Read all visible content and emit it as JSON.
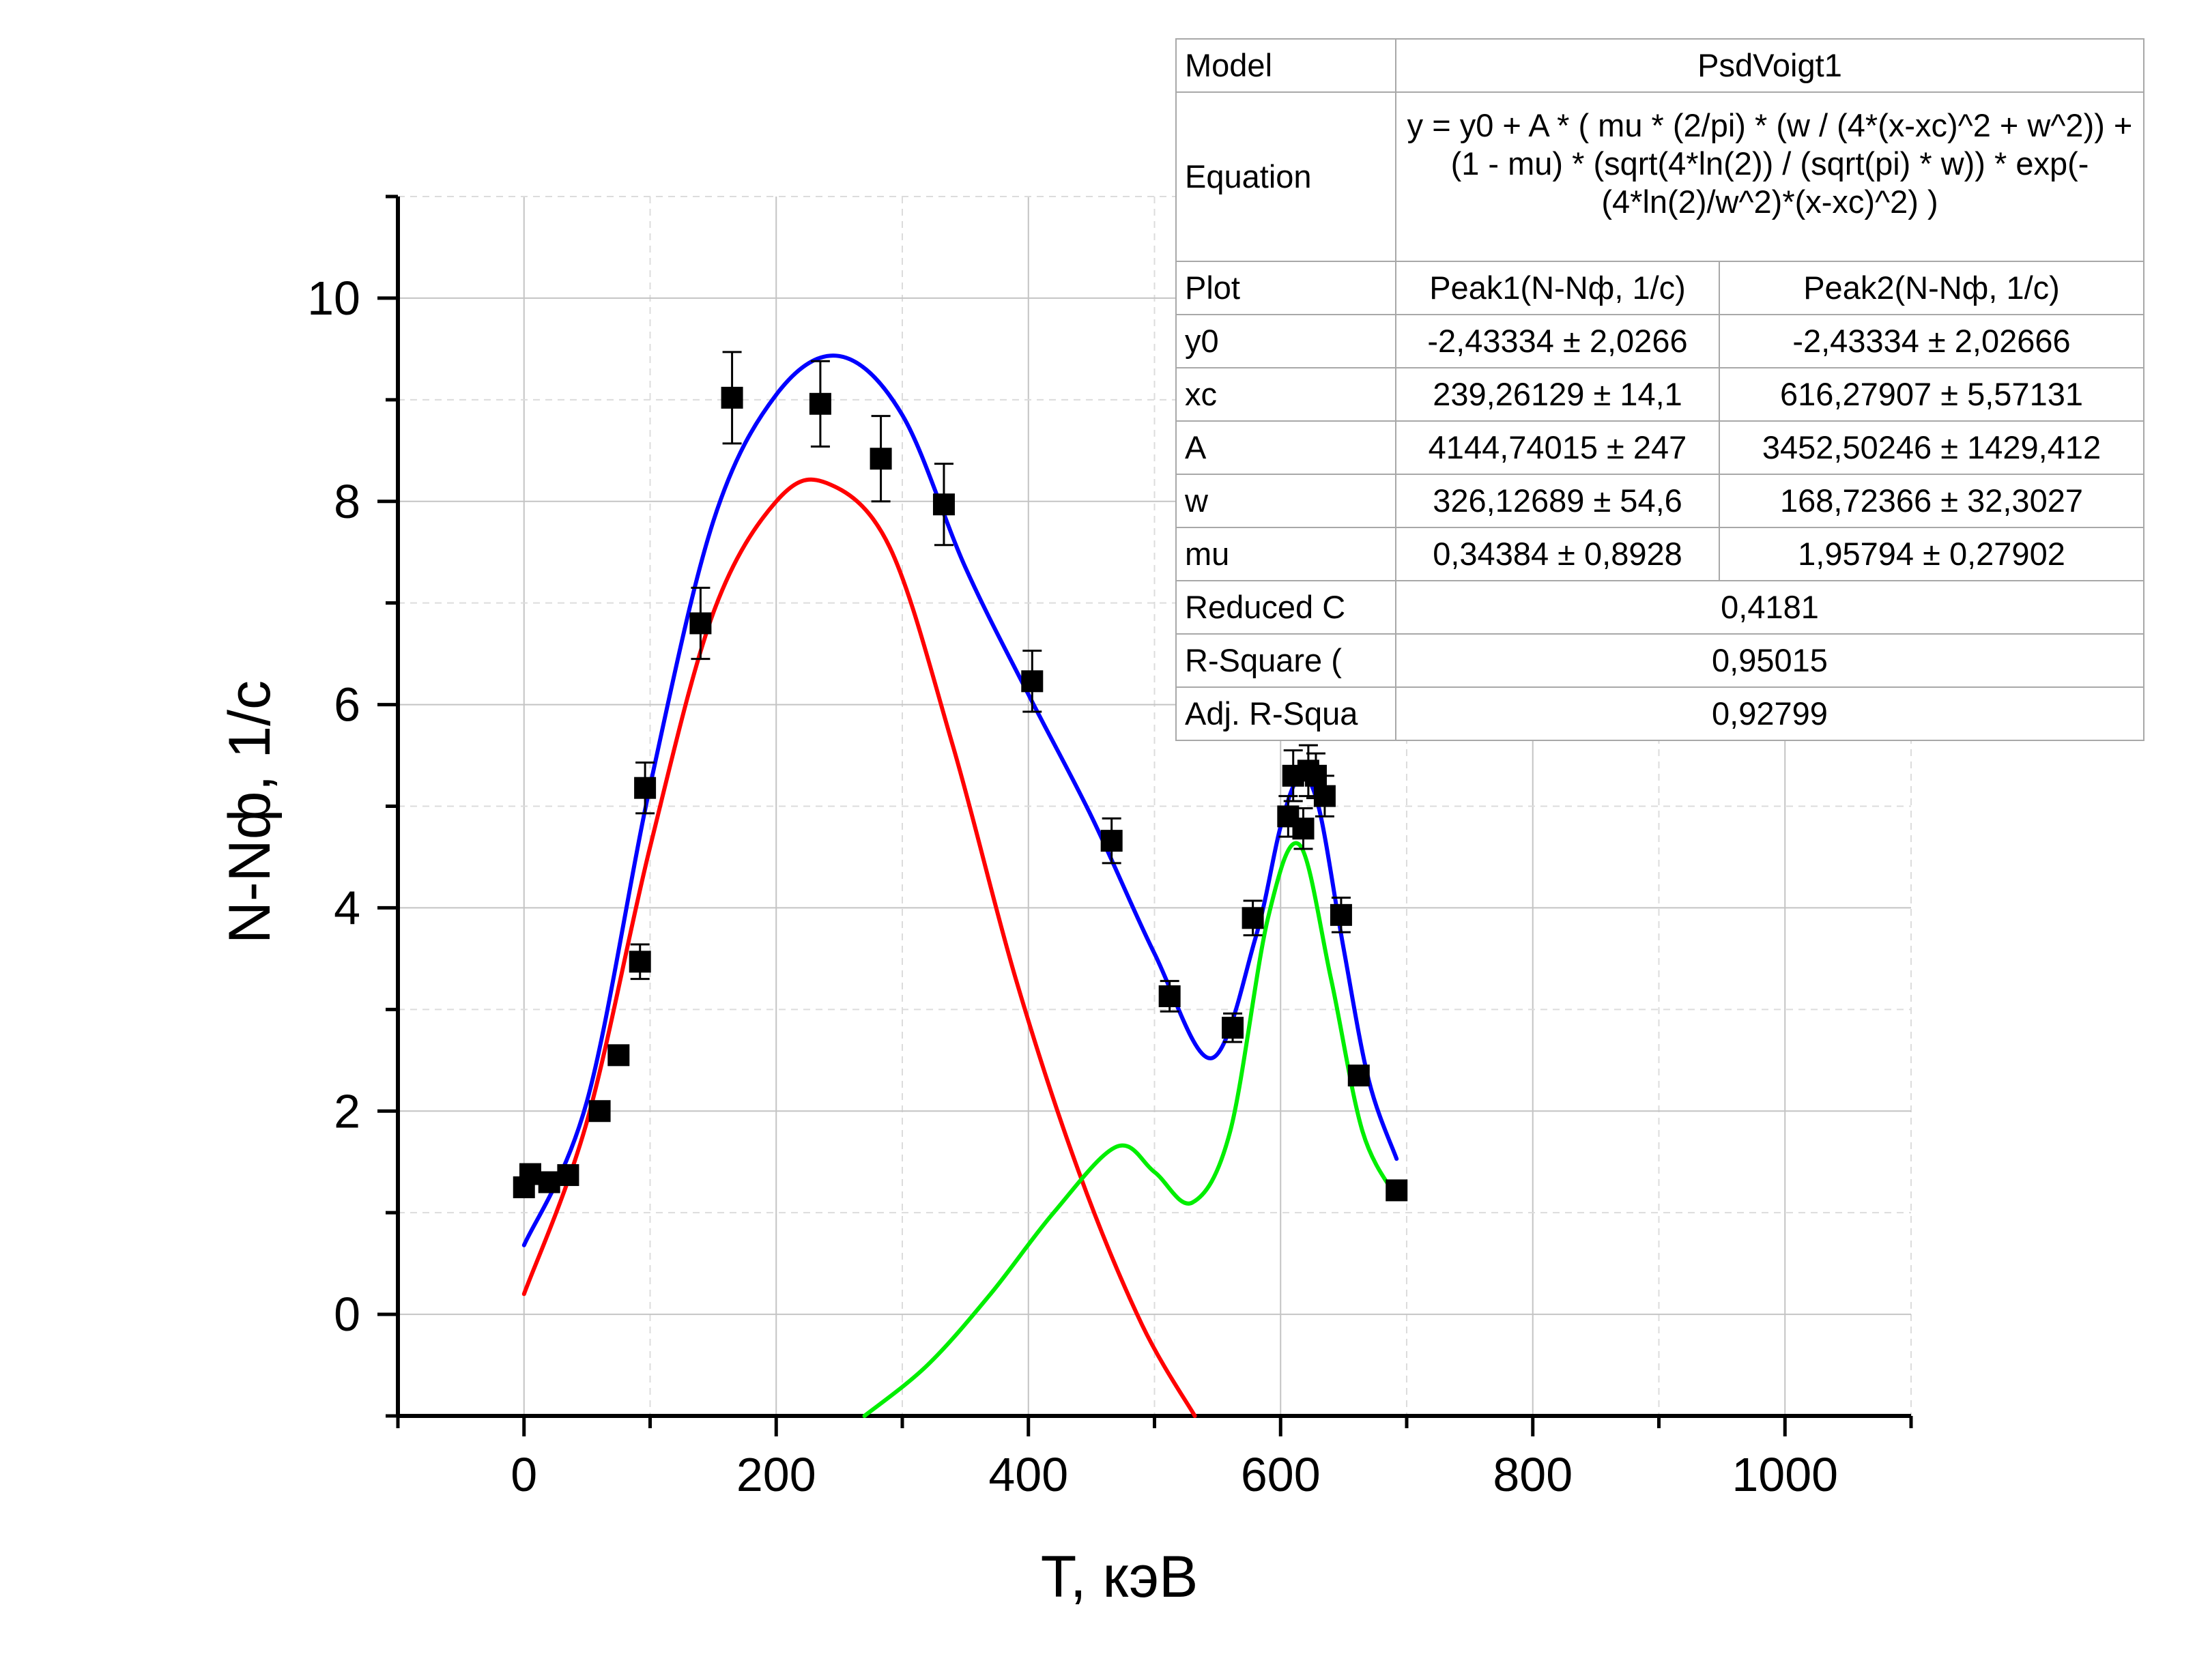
{
  "chart_data": {
    "type": "scatter",
    "title": "",
    "xlabel": "T, кэВ",
    "ylabel": "N-Nф, 1/с",
    "xlim": [
      -100,
      1100
    ],
    "ylim": [
      -1,
      11
    ],
    "xticks": [
      0,
      200,
      400,
      600,
      800,
      1000
    ],
    "yticks": [
      0,
      2,
      4,
      6,
      8,
      10
    ],
    "x_tick_labels": [
      "0",
      "200",
      "400",
      "600",
      "800",
      "1000"
    ],
    "y_tick_labels": [
      "0",
      "2",
      "4",
      "6",
      "8",
      "10"
    ],
    "grid": true,
    "points": {
      "x": [
        0,
        5,
        20,
        35,
        60,
        75,
        92,
        96,
        140,
        165,
        235,
        283,
        333,
        403,
        466,
        512,
        562,
        578,
        606,
        610,
        618,
        622,
        628,
        635,
        648,
        662,
        692
      ],
      "y": [
        1.25,
        1.38,
        1.3,
        1.37,
        2.0,
        2.55,
        3.47,
        5.18,
        6.8,
        9.02,
        8.96,
        8.42,
        7.97,
        6.23,
        4.66,
        3.13,
        2.82,
        3.9,
        4.9,
        5.3,
        4.78,
        5.35,
        5.3,
        5.1,
        3.93,
        2.35,
        1.22
      ],
      "yerr": [
        0.1,
        0.1,
        0.1,
        0.1,
        0.1,
        0.12,
        0.17,
        0.25,
        0.35,
        0.45,
        0.42,
        0.42,
        0.4,
        0.3,
        0.22,
        0.15,
        0.14,
        0.17,
        0.2,
        0.25,
        0.2,
        0.25,
        0.22,
        0.2,
        0.17,
        0.12,
        0.08
      ],
      "color": "#000000"
    },
    "curves": [
      {
        "color": "#0000ff",
        "x": [
          0,
          50,
          100,
          150,
          200,
          250,
          300,
          350,
          400,
          450,
          500,
          545,
          580,
          600,
          615,
          630,
          650,
          670,
          692
        ],
        "y": [
          0.68,
          2.1,
          5.2,
          7.8,
          9.05,
          9.43,
          8.85,
          7.35,
          6.1,
          4.9,
          3.55,
          2.52,
          3.7,
          4.8,
          5.28,
          5.0,
          3.6,
          2.3,
          1.53
        ]
      },
      {
        "color": "#ff0000",
        "x": [
          0,
          50,
          100,
          150,
          200,
          240,
          290,
          340,
          390,
          440,
          490,
          532
        ],
        "y": [
          0.2,
          1.9,
          4.6,
          6.9,
          8.0,
          8.18,
          7.55,
          5.6,
          3.3,
          1.4,
          -0.1,
          -1.0
        ]
      },
      {
        "color": "#00ee00",
        "x": [
          270,
          320,
          370,
          420,
          470,
          500,
          530,
          560,
          590,
          615,
          640,
          665,
          692
        ],
        "y": [
          -1.0,
          -0.5,
          0.2,
          1.0,
          1.65,
          1.4,
          1.1,
          1.8,
          3.9,
          4.62,
          3.3,
          1.8,
          1.15
        ]
      }
    ]
  },
  "fit_table": {
    "model_label": "Model",
    "model_value": "PsdVoigt1",
    "equation_label": "Equation",
    "equation_value": "y = y0 + A * ( mu * (2/pi) * (w / (4*(x-xc)^2 + w^2)) + (1 - mu) * (sqrt(4*ln(2)) / (sqrt(pi) * w)) * exp(-(4*ln(2)/w^2)*(x-xc)^2) )",
    "plot_label": "Plot",
    "columns": [
      "Peak1(N-Nф, 1/c)",
      "Peak2(N-Nф, 1/c)"
    ],
    "rows": [
      {
        "label": "y0",
        "values": [
          "-2,43334 ± 2,0266",
          "-2,43334 ± 2,02666"
        ]
      },
      {
        "label": "xc",
        "values": [
          "239,26129 ± 14,1",
          "616,27907 ± 5,57131"
        ]
      },
      {
        "label": "A",
        "values": [
          "4144,74015 ± 247",
          "3452,50246 ± 1429,412"
        ]
      },
      {
        "label": "w",
        "values": [
          "326,12689 ± 54,6",
          "168,72366 ± 32,3027"
        ]
      },
      {
        "label": "mu",
        "values": [
          "0,34384 ± 0,8928",
          "1,95794 ± 0,27902"
        ]
      }
    ],
    "stats": [
      {
        "label": "Reduced C",
        "value": "0,4181"
      },
      {
        "label": "R-Square (",
        "value": "0,95015"
      },
      {
        "label": "Adj. R-Squa",
        "value": "0,92799"
      }
    ]
  }
}
